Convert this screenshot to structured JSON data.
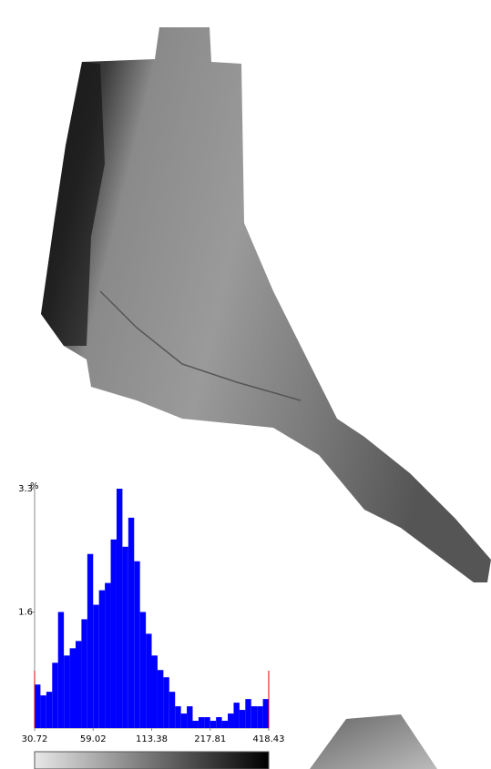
{
  "chart_data": {
    "type": "histogram",
    "y_label": "%",
    "color": "#0000ff",
    "bins": [
      30.72,
      32.79,
      35.01,
      37.37,
      39.89,
      42.58,
      45.46,
      48.53,
      51.8,
      55.3,
      59.02,
      63.0,
      67.26,
      71.8,
      76.64,
      81.82,
      87.34,
      93.24,
      99.53,
      106.25,
      113.38,
      121.04,
      129.21,
      137.93,
      147.24,
      157.18,
      167.79,
      179.11,
      191.2,
      204.11,
      217.81,
      232.51,
      248.21,
      264.96,
      282.85,
      301.94,
      322.32,
      344.08,
      367.3,
      392.09,
      418.43
    ],
    "values": [
      0.6,
      0.45,
      0.5,
      0.9,
      1.6,
      1.0,
      1.1,
      1.2,
      1.5,
      2.4,
      1.7,
      1.9,
      2.0,
      2.6,
      3.3,
      2.5,
      2.9,
      2.3,
      1.6,
      1.3,
      1.0,
      0.8,
      0.7,
      0.5,
      0.3,
      0.2,
      0.3,
      0.1,
      0.15,
      0.15,
      0.1,
      0.15,
      0.1,
      0.2,
      0.35,
      0.25,
      0.4,
      0.3,
      0.3,
      0.4
    ],
    "xlim": [
      30.72,
      418.43
    ],
    "xticks": [
      30.72,
      59.02,
      113.38,
      217.81,
      418.43
    ],
    "log_x": true,
    "ylim": [
      0,
      3.3
    ],
    "yticks": [
      1.6,
      3.3
    ]
  }
}
